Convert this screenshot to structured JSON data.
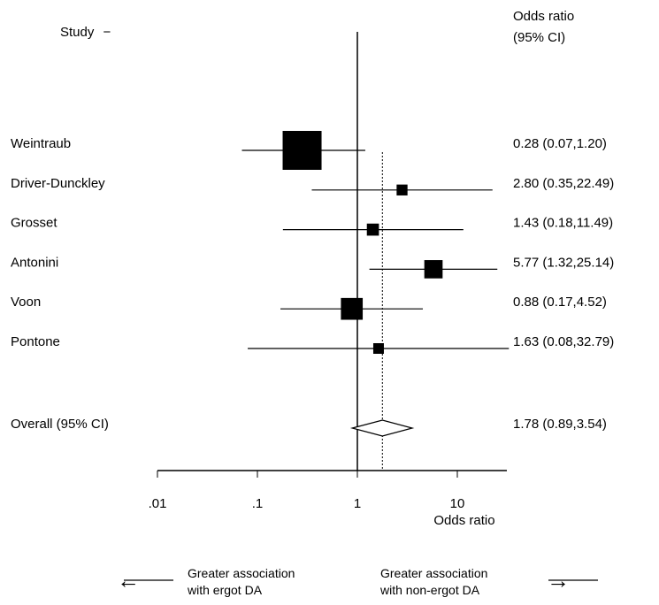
{
  "header": {
    "study_label": "Study",
    "study_dash": "−",
    "or_label_line1": "Odds ratio",
    "or_label_line2": "(95% CI)"
  },
  "footer": {
    "left_line1": "Greater association",
    "left_line2": "with ergot DA",
    "right_line1": "Greater association",
    "right_line2": "with non-ergot DA",
    "left_arrow": "←",
    "right_arrow": "→"
  },
  "chart_data": {
    "type": "forest",
    "xscale": "log",
    "xlabel": "Odds ratio",
    "xlim": [
      0.01,
      50
    ],
    "xticks": [
      {
        "value": 0.01,
        "label": ".01"
      },
      {
        "value": 0.1,
        "label": ".1"
      },
      {
        "value": 1,
        "label": "1"
      },
      {
        "value": 10,
        "label": "10"
      }
    ],
    "null_line": 1,
    "overall_line": 1.78,
    "studies": [
      {
        "name": "Weintraub",
        "or": 0.28,
        "lo": 0.07,
        "hi": 1.2,
        "weight": 1.0,
        "label": "0.28 (0.07,1.20)"
      },
      {
        "name": "Driver-Dunckley",
        "or": 2.8,
        "lo": 0.35,
        "hi": 22.49,
        "weight": 0.28,
        "label": "2.80 (0.35,22.49)"
      },
      {
        "name": "Grosset",
        "or": 1.43,
        "lo": 0.18,
        "hi": 11.49,
        "weight": 0.31,
        "label": "1.43 (0.18,11.49)"
      },
      {
        "name": "Antonini",
        "or": 5.77,
        "lo": 1.32,
        "hi": 25.14,
        "weight": 0.47,
        "label": "5.77 (1.32,25.14)"
      },
      {
        "name": "Voon",
        "or": 0.88,
        "lo": 0.17,
        "hi": 4.52,
        "weight": 0.56,
        "label": "0.88 (0.17,4.52)"
      },
      {
        "name": "Pontone",
        "or": 1.63,
        "lo": 0.08,
        "hi": 32.79,
        "weight": 0.13,
        "label": "1.63 (0.08,32.79)"
      }
    ],
    "overall": {
      "name": "Overall (95% CI)",
      "or": 1.78,
      "lo": 0.89,
      "hi": 3.54,
      "label": "1.78 (0.89,3.54)"
    }
  }
}
